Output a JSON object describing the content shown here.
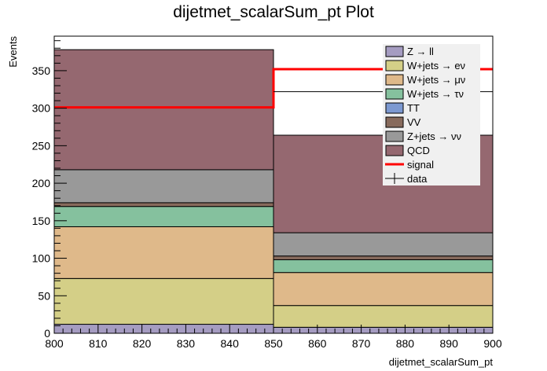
{
  "chart_data": {
    "type": "bar",
    "title": "dijetmet_scalarSum_pt Plot",
    "xlabel": "dijetmet_scalarSum_pt",
    "ylabel": "Events",
    "xlim": [
      800,
      900
    ],
    "ylim": [
      0,
      396
    ],
    "bin_edges": [
      800,
      850,
      900
    ],
    "x_ticks": [
      "800",
      "810",
      "820",
      "830",
      "840",
      "850",
      "860",
      "870",
      "880",
      "890",
      "900"
    ],
    "y_ticks": [
      "0",
      "50",
      "100",
      "150",
      "200",
      "250",
      "300",
      "350"
    ],
    "stacked": true,
    "series": [
      {
        "name": "Z → ll",
        "color": "#a59cc1",
        "values": [
          12,
          8
        ]
      },
      {
        "name": "W+jets → eν",
        "color": "#d4cf87",
        "values": [
          61,
          29
        ]
      },
      {
        "name": "W+jets → μν",
        "color": "#dfb98a",
        "values": [
          69,
          44
        ]
      },
      {
        "name": "W+jets → τν",
        "color": "#85c19e",
        "values": [
          27,
          17
        ]
      },
      {
        "name": "TT",
        "color": "#7c99d1",
        "values": [
          0,
          0
        ]
      },
      {
        "name": "VV",
        "color": "#876a5c",
        "values": [
          5,
          5
        ]
      },
      {
        "name": "Z+jets → νν",
        "color": "#999999",
        "values": [
          44,
          31
        ]
      },
      {
        "name": "QCD",
        "color": "#956870",
        "values": [
          160,
          130
        ]
      }
    ],
    "signal": {
      "name": "signal",
      "color": "#ff0000",
      "values": [
        301,
        352
      ]
    },
    "data_points": {
      "name": "data",
      "values": [
        null,
        322
      ]
    },
    "legend_position": "top-right"
  }
}
